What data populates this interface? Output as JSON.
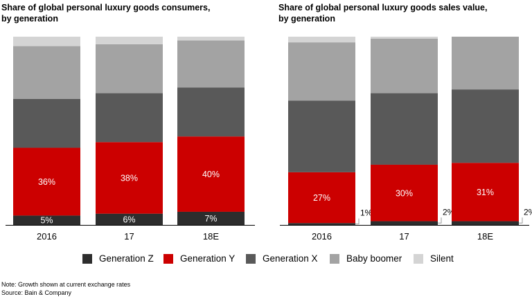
{
  "chart_data": [
    {
      "type": "bar",
      "stacked": true,
      "title": "Share of global personal luxury goods consumers,\nby generation",
      "categories": [
        "2016",
        "17",
        "18E"
      ],
      "ylim": [
        0,
        100
      ],
      "series": [
        {
          "name": "Generation Z",
          "values": [
            5,
            6,
            7
          ],
          "labels": [
            "5%",
            "6%",
            "7%"
          ]
        },
        {
          "name": "Generation Y",
          "values": [
            36,
            38,
            40
          ],
          "labels": [
            "36%",
            "38%",
            "40%"
          ]
        },
        {
          "name": "Generation X",
          "values": [
            26,
            26,
            26
          ],
          "labels": [
            "",
            "",
            ""
          ]
        },
        {
          "name": "Baby boomer",
          "values": [
            28,
            26,
            25
          ],
          "labels": [
            "",
            "",
            ""
          ]
        },
        {
          "name": "Silent",
          "values": [
            5,
            4,
            2
          ],
          "labels": [
            "",
            "",
            ""
          ]
        }
      ]
    },
    {
      "type": "bar",
      "stacked": true,
      "title": "Share of global personal luxury goods sales value,\nby generation",
      "categories": [
        "2016",
        "17",
        "18E"
      ],
      "ylim": [
        0,
        100
      ],
      "series": [
        {
          "name": "Generation Z",
          "values": [
            1,
            2,
            2
          ],
          "labels": [
            "1%",
            "2%",
            "2%"
          ]
        },
        {
          "name": "Generation Y",
          "values": [
            27,
            30,
            31
          ],
          "labels": [
            "27%",
            "30%",
            "31%"
          ]
        },
        {
          "name": "Generation X",
          "values": [
            38,
            38,
            39
          ],
          "labels": [
            "",
            "",
            ""
          ]
        },
        {
          "name": "Baby boomer",
          "values": [
            31,
            29,
            28
          ],
          "labels": [
            "",
            "",
            ""
          ]
        },
        {
          "name": "Silent",
          "values": [
            3,
            1,
            0
          ],
          "labels": [
            "",
            "",
            ""
          ]
        }
      ]
    }
  ],
  "colors": {
    "Generation Z": "#2d2d2d",
    "Generation Y": "#cc0000",
    "Generation X": "#595959",
    "Baby boomer": "#a3a3a3",
    "Silent": "#d4d4d4"
  },
  "legend": [
    {
      "name": "Generation Z",
      "color": "#2d2d2d"
    },
    {
      "name": "Generation Y",
      "color": "#cc0000"
    },
    {
      "name": "Generation X",
      "color": "#595959"
    },
    {
      "name": "Baby boomer",
      "color": "#a3a3a3"
    },
    {
      "name": "Silent",
      "color": "#d4d4d4"
    }
  ],
  "footer": {
    "note": "Note: Growth shown at current exchange rates",
    "source": "Source: Bain & Company"
  }
}
